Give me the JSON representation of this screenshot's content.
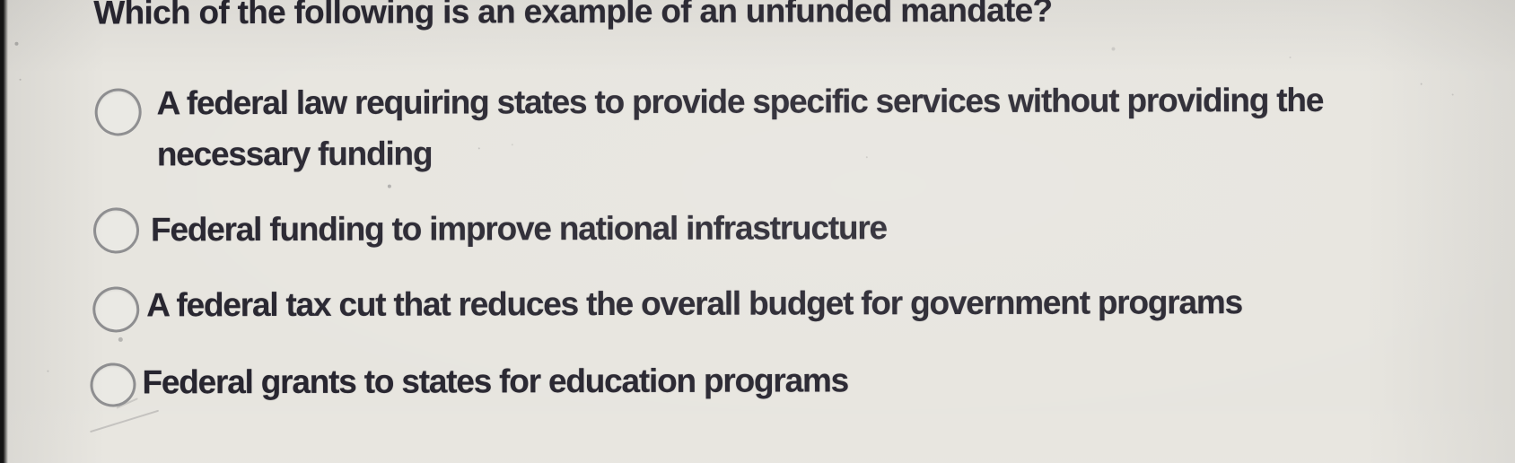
{
  "colors": {
    "background": "#e7e5df",
    "text": "#27252f",
    "radio_stroke": "#8e8e90",
    "bezel": "#141414"
  },
  "question": {
    "title": "Which of the following is an example of an unfunded mandate?",
    "options": [
      {
        "selected": false,
        "lines": [
          "A federal law requiring states to provide specific services without providing the",
          "necessary funding"
        ]
      },
      {
        "selected": false,
        "lines": [
          "Federal funding to improve national infrastructure"
        ]
      },
      {
        "selected": false,
        "lines": [
          "A federal tax cut that reduces the overall budget for government programs"
        ]
      },
      {
        "selected": false,
        "lines": [
          "Federal grants to states for education programs"
        ]
      }
    ]
  }
}
